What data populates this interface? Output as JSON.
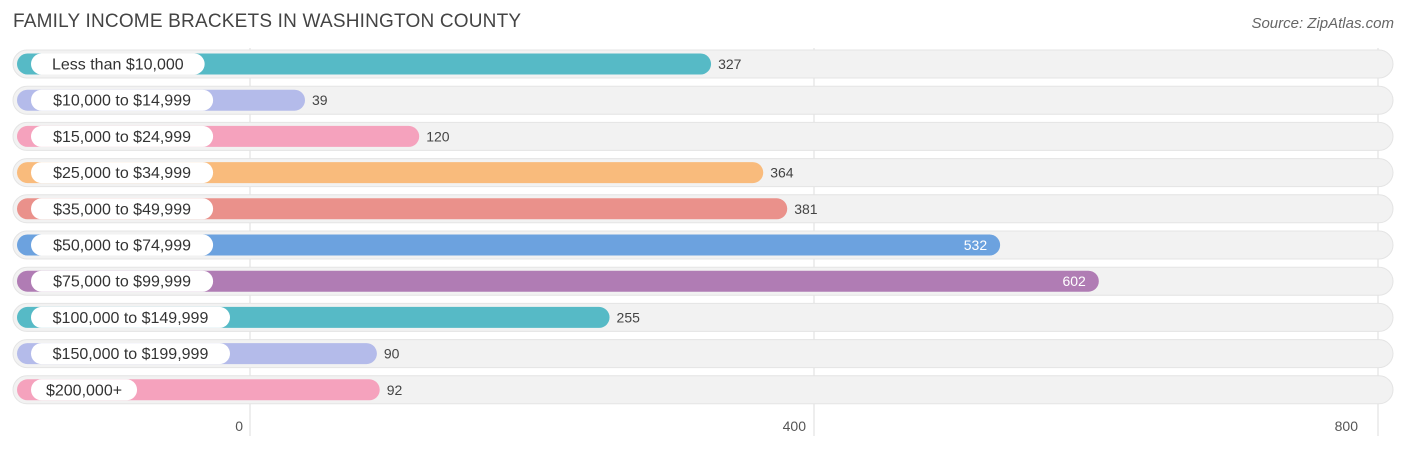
{
  "header": {
    "title": "FAMILY INCOME BRACKETS IN WASHINGTON COUNTY",
    "source": "Source: ZipAtlas.com"
  },
  "chart_data": {
    "type": "bar",
    "orientation": "horizontal",
    "title": "FAMILY INCOME BRACKETS IN WASHINGTON COUNTY",
    "categories": [
      "Less than $10,000",
      "$10,000 to $14,999",
      "$15,000 to $24,999",
      "$25,000 to $34,999",
      "$35,000 to $49,999",
      "$50,000 to $74,999",
      "$75,000 to $99,999",
      "$100,000 to $149,999",
      "$150,000 to $199,999",
      "$200,000+"
    ],
    "values": [
      327,
      39,
      120,
      364,
      381,
      532,
      602,
      255,
      90,
      92
    ],
    "colors": [
      "#56bac6",
      "#b4bbea",
      "#f5a2bd",
      "#f9bb7c",
      "#ea918b",
      "#6ca2df",
      "#b07cb4",
      "#56bac6",
      "#b4bbea",
      "#f5a2bd"
    ],
    "xlim": [
      0,
      800
    ],
    "xticks": [
      0,
      400,
      800
    ],
    "grid": true
  }
}
